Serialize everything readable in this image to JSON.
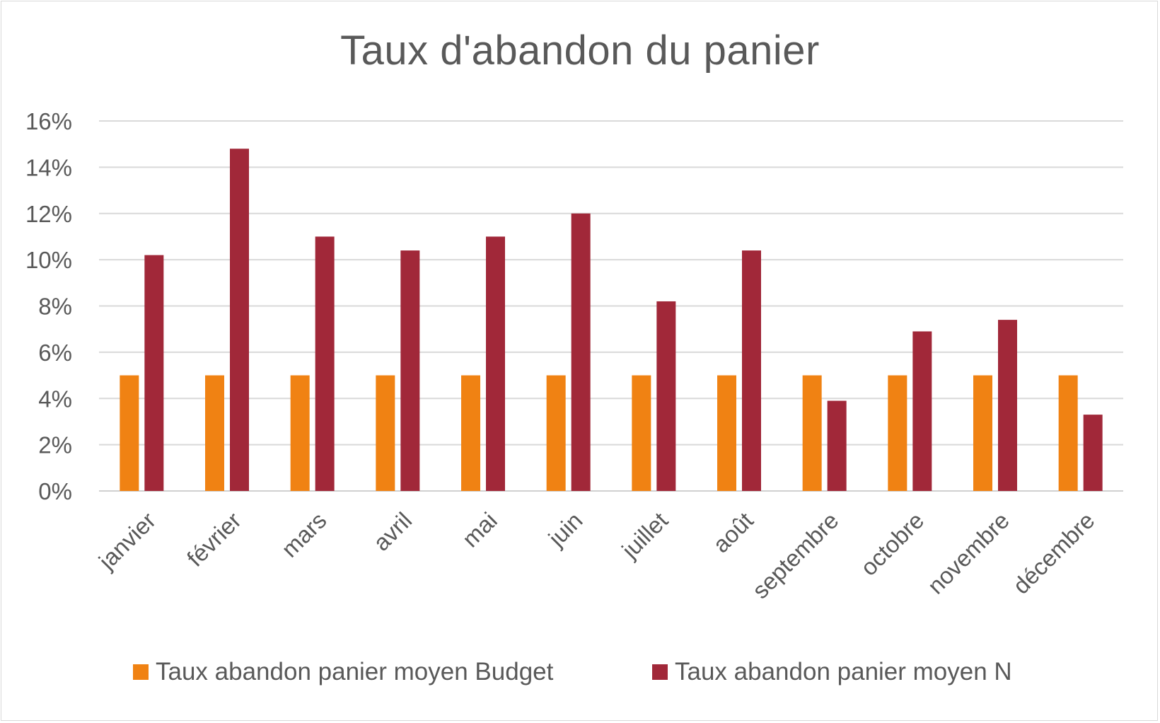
{
  "chart_data": {
    "type": "bar",
    "title": "Taux d'abandon du panier",
    "xlabel": "",
    "ylabel": "",
    "categories": [
      "janvier",
      "février",
      "mars",
      "avril",
      "mai",
      "juin",
      "juillet",
      "août",
      "septembre",
      "octobre",
      "novembre",
      "décembre"
    ],
    "series": [
      {
        "name": "Taux abandon panier moyen Budget",
        "color": "#f08213",
        "values": [
          0.05,
          0.05,
          0.05,
          0.05,
          0.05,
          0.05,
          0.05,
          0.05,
          0.05,
          0.05,
          0.05,
          0.05
        ]
      },
      {
        "name": "Taux abandon panier moyen N",
        "color": "#a12839",
        "values": [
          0.102,
          0.148,
          0.11,
          0.104,
          0.11,
          0.12,
          0.082,
          0.104,
          0.039,
          0.069,
          0.074,
          0.033
        ]
      }
    ],
    "ylim": [
      0,
      0.16
    ],
    "yticks": [
      "0%",
      "2%",
      "4%",
      "6%",
      "8%",
      "10%",
      "12%",
      "14%",
      "16%"
    ],
    "grid": true,
    "legend": "bottom"
  }
}
